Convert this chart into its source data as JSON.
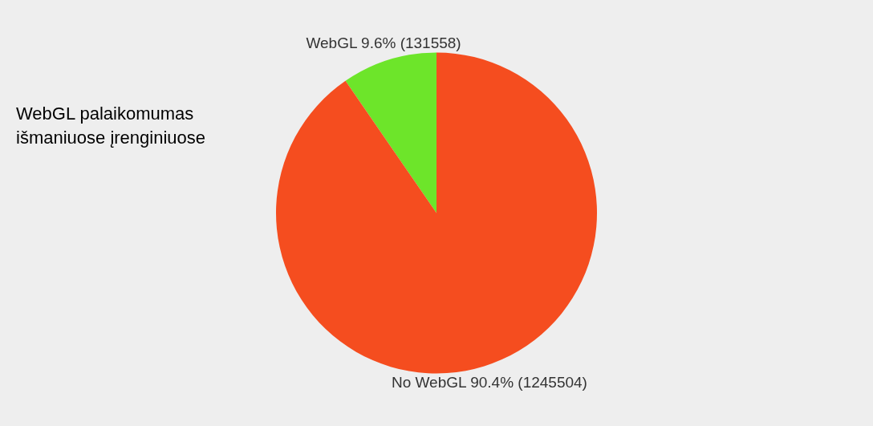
{
  "chart_data": {
    "type": "pie",
    "title": "WebGL palaikomumas išmaniuose įrenginiuose",
    "categories": [
      "WebGL",
      "No WebGL"
    ],
    "values": [
      9.6,
      90.4
    ],
    "colors": [
      "#6de52a",
      "#f54d1f"
    ],
    "value_labels": [
      "9.6% (131558)",
      "90.4% (1245504)"
    ]
  }
}
